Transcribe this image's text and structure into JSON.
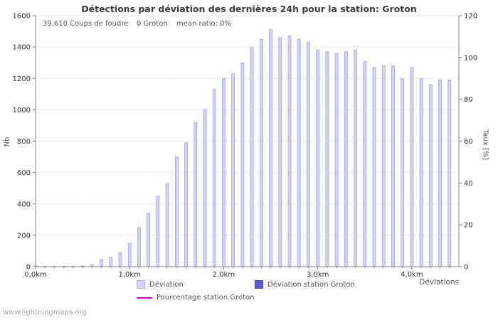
{
  "title": "Détections par déviation des dernières 24h pour la station: Groton",
  "annotations": {
    "strikes": "39.610  Coups de foudre",
    "station": "0 Groton",
    "mean_ratio": "mean ratio: 0%"
  },
  "axes": {
    "y_left": {
      "label": "Nb",
      "ticks": [
        0,
        200,
        400,
        600,
        800,
        1000,
        1200,
        1400,
        1600
      ]
    },
    "y_right": {
      "label": "Taux [%]",
      "ticks": [
        0,
        20,
        40,
        60,
        80,
        100,
        120
      ]
    },
    "x": {
      "label": "Déviations",
      "tick_labels": [
        "0,0km",
        "1,0km",
        "2,0km",
        "3,0km",
        "4,0km"
      ],
      "tick_km": [
        0,
        1,
        2,
        3,
        4
      ]
    }
  },
  "legend": {
    "items": [
      {
        "label": "Déviation",
        "color": "#d2d2f5",
        "type": "box"
      },
      {
        "label": "Déviation station Groton",
        "color": "#5c5cd6",
        "type": "box"
      },
      {
        "label": "Pourcentage station Groton",
        "color": "#cc00cc",
        "type": "line"
      }
    ]
  },
  "watermark": "www.lightningmaps.org",
  "colors": {
    "bar_fill": "#d2d2f5",
    "bar_stroke": "#a5a5e0",
    "station_bar": "#5c5cd6",
    "percentage_line": "#cc00cc",
    "grid": "#c4c4c4",
    "axis": "#808080",
    "text": "#333333"
  },
  "chart_data": {
    "type": "bar",
    "title": "Détections par déviation des dernières 24h pour la station: Groton",
    "xlabel": "Déviations",
    "ylabel_left": "Nb",
    "ylabel_right": "Taux [%]",
    "ylim_left": [
      0,
      1600
    ],
    "ylim_right": [
      0,
      120
    ],
    "x_range_km": [
      0,
      4.5
    ],
    "grid": true,
    "legend_position": "bottom",
    "x_km": [
      0,
      0.1,
      0.2,
      0.3,
      0.4,
      0.5,
      0.6,
      0.7,
      0.8,
      0.9,
      1,
      1.1,
      1.2,
      1.3,
      1.4,
      1.5,
      1.6,
      1.7,
      1.8,
      1.9,
      2,
      2.1,
      2.2,
      2.3,
      2.4,
      2.5,
      2.6,
      2.7,
      2.8,
      2.9,
      3,
      3.1,
      3.2,
      3.3,
      3.4,
      3.5,
      3.6,
      3.7,
      3.8,
      3.9,
      4,
      4.1,
      4.2,
      4.3,
      4.4
    ],
    "series": [
      {
        "name": "Déviation",
        "axis": "left",
        "render": "bar",
        "color": "#d2d2f5",
        "stroke": "#a5a5e0",
        "values": [
          5,
          3,
          3,
          3,
          3,
          5,
          12,
          45,
          60,
          90,
          150,
          250,
          340,
          450,
          530,
          700,
          790,
          920,
          1000,
          1130,
          1200,
          1230,
          1300,
          1400,
          1450,
          1510,
          1460,
          1470,
          1450,
          1430,
          1380,
          1370,
          1360,
          1370,
          1380,
          1310,
          1270,
          1280,
          1280,
          1200,
          1270,
          1200,
          1160,
          1190,
          1190
        ]
      },
      {
        "name": "Déviation station Groton",
        "axis": "left",
        "render": "bar",
        "color": "#5c5cd6",
        "stroke": "#4747c0",
        "values": [
          0,
          0,
          0,
          0,
          0,
          0,
          0,
          0,
          0,
          0,
          0,
          0,
          0,
          0,
          0,
          0,
          0,
          0,
          0,
          0,
          0,
          0,
          0,
          0,
          0,
          0,
          0,
          0,
          0,
          0,
          0,
          0,
          0,
          0,
          0,
          0,
          0,
          0,
          0,
          0,
          0,
          0,
          0,
          0,
          0
        ]
      },
      {
        "name": "Pourcentage station Groton",
        "axis": "right",
        "render": "line",
        "color": "#cc00cc",
        "values": [
          0,
          0,
          0,
          0,
          0,
          0,
          0,
          0,
          0,
          0,
          0,
          0,
          0,
          0,
          0,
          0,
          0,
          0,
          0,
          0,
          0,
          0,
          0,
          0,
          0,
          0,
          0,
          0,
          0,
          0,
          0,
          0,
          0,
          0,
          0,
          0,
          0,
          0,
          0,
          0,
          0,
          0,
          0,
          0,
          0
        ]
      }
    ]
  }
}
